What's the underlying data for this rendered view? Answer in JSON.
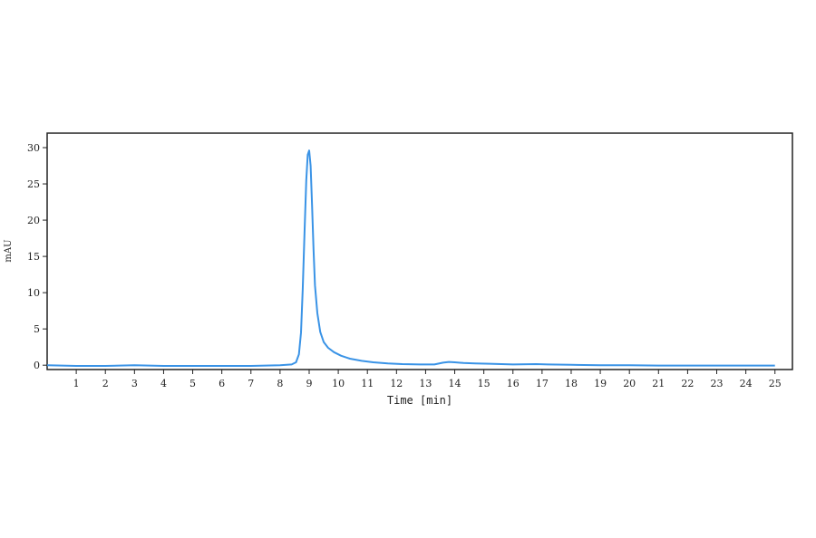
{
  "chart_data": {
    "type": "line",
    "title": "",
    "xlabel": "Time [min]",
    "ylabel": "mAU",
    "xlim": [
      0,
      25.6
    ],
    "ylim": [
      -0.6,
      32
    ],
    "x_ticks": [
      1,
      2,
      3,
      4,
      5,
      6,
      7,
      8,
      9,
      10,
      11,
      12,
      13,
      14,
      15,
      16,
      17,
      18,
      19,
      20,
      21,
      22,
      23,
      24,
      25
    ],
    "y_ticks": [
      0,
      5,
      10,
      15,
      20,
      25,
      30
    ],
    "grid": false,
    "legend": "none",
    "series": [
      {
        "color": "#3a93e6",
        "x": [
          0.0,
          1.0,
          2.0,
          3.0,
          4.0,
          5.0,
          6.0,
          7.0,
          8.0,
          8.4,
          8.55,
          8.65,
          8.72,
          8.78,
          8.84,
          8.9,
          8.95,
          9.0,
          9.05,
          9.1,
          9.15,
          9.2,
          9.28,
          9.38,
          9.5,
          9.65,
          9.85,
          10.1,
          10.4,
          10.8,
          11.2,
          11.7,
          12.2,
          12.8,
          13.3,
          13.6,
          13.8,
          14.0,
          14.3,
          14.7,
          15.2,
          16.0,
          16.8,
          17.2,
          18.0,
          19.0,
          20.0,
          21.0,
          22.0,
          23.0,
          24.0,
          25.0
        ],
        "y": [
          0.0,
          -0.1,
          -0.1,
          0.0,
          -0.1,
          -0.1,
          -0.1,
          -0.1,
          0.0,
          0.1,
          0.4,
          1.5,
          4.5,
          10.5,
          18.0,
          25.5,
          29.0,
          29.6,
          27.5,
          22.0,
          16.0,
          11.0,
          7.2,
          4.6,
          3.2,
          2.4,
          1.8,
          1.3,
          0.9,
          0.6,
          0.4,
          0.25,
          0.15,
          0.1,
          0.1,
          0.35,
          0.45,
          0.4,
          0.3,
          0.25,
          0.2,
          0.1,
          0.15,
          0.1,
          0.05,
          0.0,
          0.0,
          -0.05,
          -0.05,
          -0.05,
          -0.05,
          -0.05
        ]
      }
    ]
  }
}
